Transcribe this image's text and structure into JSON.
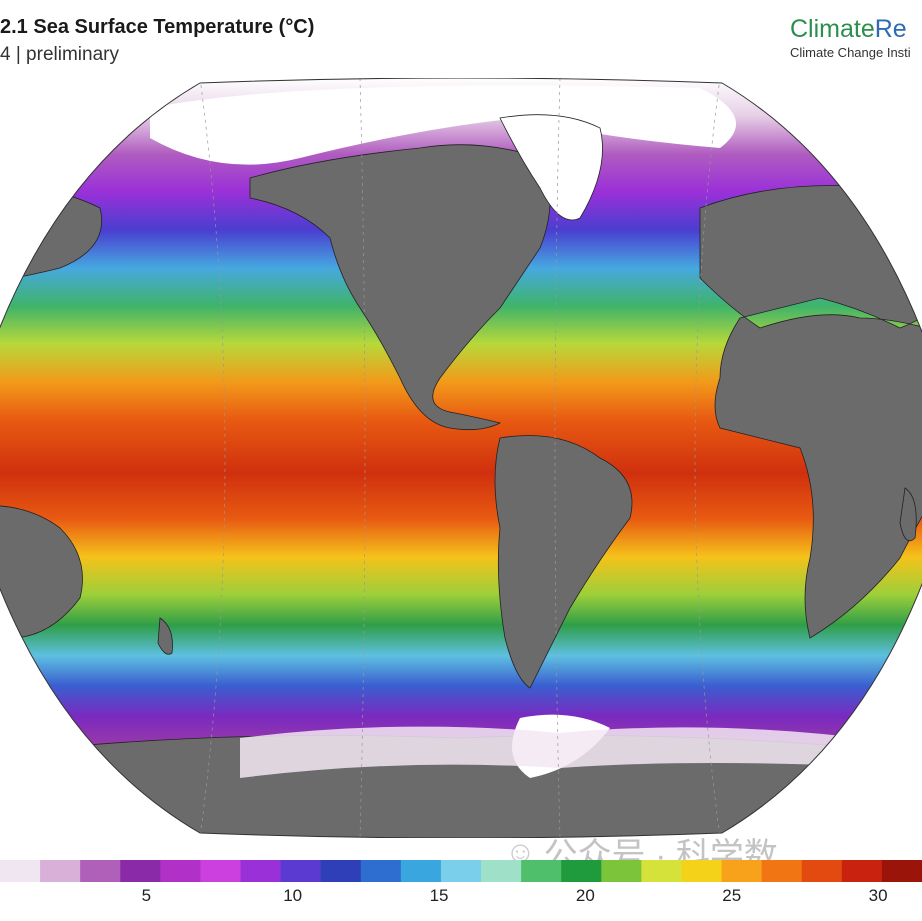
{
  "header": {
    "title": "2.1 Sea Surface Temperature (°C)",
    "subtitle": "4 | preliminary"
  },
  "brand": {
    "name_part1": "Climate",
    "name_part2": "Re",
    "tagline": "Climate Change Insti",
    "color_part1": "#2c8f4e",
    "color_part2": "#2e6bb5"
  },
  "map": {
    "projection": "Winkel Tripel",
    "variable": "Sea Surface Temperature",
    "land_color": "#6b6b6b",
    "ice_color": "#ffffff",
    "background_color": "#ffffff"
  },
  "watermark": {
    "text": "公众号 · 科学数",
    "icon": "wechat-icon"
  },
  "colorbar": {
    "min": 0,
    "max": 31.5,
    "ticks": [
      5,
      10,
      15,
      20,
      25,
      30
    ],
    "tick_labels": [
      "5",
      "10",
      "15",
      "20",
      "25",
      "30"
    ],
    "colors": [
      "#f0e6f2",
      "#d8b0d8",
      "#b060b8",
      "#8a2aa8",
      "#b030c8",
      "#cc40e0",
      "#9a30d8",
      "#5a3ad0",
      "#2f3fb8",
      "#2e6ed0",
      "#3aa6e0",
      "#7ad0ea",
      "#9ee0c8",
      "#4fbf6c",
      "#1f9a3c",
      "#7cc43a",
      "#d4e23a",
      "#f5d21a",
      "#f7a21a",
      "#f27514",
      "#e24a10",
      "#c9220e",
      "#9a140a"
    ]
  }
}
